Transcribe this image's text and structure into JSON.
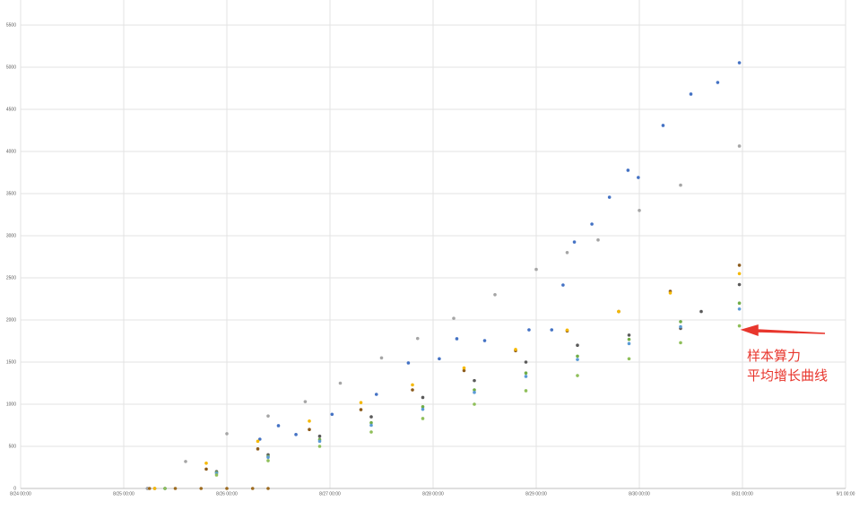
{
  "chart_data": {
    "type": "scatter",
    "xlim": [
      0,
      8
    ],
    "xticks": [
      {
        "value": 0,
        "label": "8/24 00:00"
      },
      {
        "value": 1,
        "label": "8/25 00:00"
      },
      {
        "value": 2,
        "label": "8/26 00:00"
      },
      {
        "value": 3,
        "label": "8/27 00:00"
      },
      {
        "value": 4,
        "label": "8/28 00:00"
      },
      {
        "value": 5,
        "label": "8/29 00:00"
      },
      {
        "value": 6,
        "label": "8/30 00:00"
      },
      {
        "value": 7,
        "label": "8/31 00:00"
      },
      {
        "value": 8,
        "label": "9/1 00:00"
      }
    ],
    "ylim": [
      0,
      5500
    ],
    "yticks": [
      0,
      500,
      1000,
      1500,
      2000,
      2500,
      3000,
      3500,
      4000,
      4500,
      5000,
      5500
    ],
    "grid": true,
    "annotation": [
      "样本算力",
      "平均增长曲线"
    ],
    "annotation_color": "#e8362d",
    "series": [
      {
        "color": "#4472c4",
        "x": [
          1.23,
          2.32,
          2.5,
          2.67,
          3.02,
          3.45,
          3.76,
          4.06,
          4.23,
          4.5,
          4.93,
          5.15,
          5.26,
          5.37,
          5.54,
          5.71,
          5.89,
          5.99,
          6.23,
          6.5,
          6.76,
          6.97
        ],
        "values": [
          0,
          585,
          745,
          640,
          880,
          1117,
          1490,
          1540,
          1777,
          1755,
          1883,
          1883,
          2415,
          2925,
          3138,
          3457,
          3777,
          3691,
          4309,
          4681,
          4819,
          5053
        ]
      },
      {
        "color": "#a5a5a5",
        "x": [
          1.23,
          1.6,
          2.0,
          2.4,
          2.76,
          3.1,
          3.5,
          3.85,
          4.2,
          4.6,
          5.0,
          5.3,
          5.6,
          6.0,
          6.4,
          6.97
        ],
        "values": [
          0,
          320,
          650,
          860,
          1030,
          1250,
          1550,
          1780,
          2020,
          2300,
          2600,
          2800,
          2950,
          3300,
          3600,
          4064
        ]
      },
      {
        "color": "#8b5a1b",
        "x": [
          1.3,
          1.8,
          2.3,
          2.8,
          3.3,
          3.8,
          4.3,
          4.8,
          5.3,
          5.8,
          6.3,
          6.97
        ],
        "values": [
          0,
          230,
          470,
          700,
          935,
          1170,
          1400,
          1635,
          1870,
          2100,
          2340,
          2650
        ]
      },
      {
        "color": "#f5b800",
        "x": [
          1.3,
          1.8,
          2.3,
          2.8,
          3.3,
          3.8,
          4.3,
          4.8,
          5.3,
          5.8,
          6.3,
          6.97
        ],
        "values": [
          0,
          300,
          560,
          800,
          1020,
          1230,
          1430,
          1650,
          1880,
          2100,
          2320,
          2550
        ]
      },
      {
        "color": "#5a5a5a",
        "x": [
          1.4,
          1.9,
          2.4,
          2.9,
          3.4,
          3.9,
          4.4,
          4.9,
          5.4,
          5.9,
          6.4,
          6.6,
          6.97
        ],
        "values": [
          0,
          200,
          400,
          620,
          850,
          1080,
          1280,
          1500,
          1700,
          1820,
          1900,
          2100,
          2420
        ]
      },
      {
        "color": "#70ad47",
        "x": [
          1.4,
          1.9,
          2.4,
          2.9,
          3.4,
          3.9,
          4.4,
          4.9,
          5.4,
          5.9,
          6.4,
          6.97
        ],
        "values": [
          0,
          190,
          380,
          580,
          780,
          970,
          1170,
          1370,
          1570,
          1770,
          1980,
          2200
        ]
      },
      {
        "color": "#5b9bd5",
        "x": [
          1.4,
          1.9,
          2.4,
          2.9,
          3.4,
          3.9,
          4.4,
          4.9,
          5.4,
          5.9,
          6.4,
          6.97
        ],
        "values": [
          0,
          180,
          370,
          560,
          750,
          940,
          1140,
          1330,
          1530,
          1720,
          1920,
          2130
        ]
      },
      {
        "color": "#8fbf5a",
        "x": [
          1.4,
          1.9,
          2.4,
          2.9,
          3.4,
          3.9,
          4.4,
          4.9,
          5.4,
          5.9,
          6.4,
          6.97
        ],
        "values": [
          0,
          160,
          330,
          500,
          670,
          830,
          1000,
          1160,
          1340,
          1540,
          1730,
          1930
        ]
      },
      {
        "color": "#9c6a1f",
        "x": [
          1.25,
          1.5,
          1.75,
          2.0,
          2.25,
          2.4
        ],
        "values": [
          0,
          0,
          0,
          0,
          0,
          0
        ]
      }
    ]
  }
}
